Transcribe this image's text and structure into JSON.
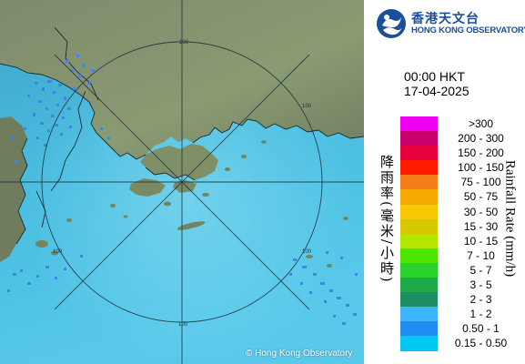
{
  "map": {
    "copyright": "© Hong Kong Observatory",
    "range_ring_labels": [
      "100",
      "100",
      "100",
      "100",
      "100"
    ],
    "sea_color": "#44b8d8",
    "land_color": "#7a8a66",
    "echo_color": "#3d86e0"
  },
  "logo": {
    "chinese_name": "香港天文台",
    "english_name": "HONG KONG OBSERVATORY",
    "brand_color": "#1b4f99"
  },
  "timestamp": {
    "time": "00:00 HKT",
    "date": "17-04-2025"
  },
  "legend": {
    "title_chinese": "降雨率(毫米/小時)",
    "title_english": "Rainfall Rate (mm/h)",
    "items": [
      {
        "label": ">300",
        "color": "#f000f0"
      },
      {
        "label": "200 - 300",
        "color": "#c8006e"
      },
      {
        "label": "150 - 200",
        "color": "#e6003c"
      },
      {
        "label": "100 - 150",
        "color": "#ff1a00"
      },
      {
        "label": "75 - 100",
        "color": "#f57d1a"
      },
      {
        "label": "50 - 75",
        "color": "#f5a800"
      },
      {
        "label": "30 - 50",
        "color": "#f7c800"
      },
      {
        "label": "15 - 30",
        "color": "#d8c800"
      },
      {
        "label": "10 - 15",
        "color": "#b4e600"
      },
      {
        "label": "7 - 10",
        "color": "#4ce600"
      },
      {
        "label": "5 - 7",
        "color": "#28d228"
      },
      {
        "label": "3 - 5",
        "color": "#1eaa46"
      },
      {
        "label": "2 - 3",
        "color": "#1e8c64"
      },
      {
        "label": "1 - 2",
        "color": "#3cb4ff"
      },
      {
        "label": "0.50 - 1",
        "color": "#1e8cf0"
      },
      {
        "label": "0.15 - 0.50",
        "color": "#00c8f0"
      }
    ]
  }
}
